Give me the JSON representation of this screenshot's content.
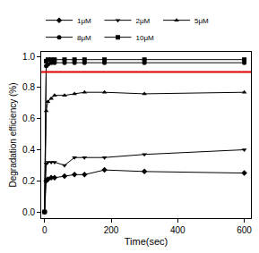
{
  "chart_data": {
    "type": "line",
    "x_label": "Time(sec)",
    "y_label": "Degradation efficiency (%)",
    "x": [
      0,
      5,
      10,
      20,
      30,
      60,
      90,
      120,
      180,
      300,
      600
    ],
    "series": [
      {
        "name": "1μM",
        "color": "#000000",
        "marker": "diamond",
        "line_style": "solid",
        "values": [
          0,
          0.2,
          0.21,
          0.22,
          0.22,
          0.23,
          0.24,
          0.24,
          0.27,
          0.26,
          0.25
        ]
      },
      {
        "name": "2μM",
        "color": "#000000",
        "marker": "triangle-down",
        "line_style": "solid",
        "values": [
          0,
          0.31,
          0.32,
          0.32,
          0.32,
          0.3,
          0.35,
          0.35,
          0.35,
          0.37,
          0.4
        ]
      },
      {
        "name": "5μM",
        "color": "#000000",
        "marker": "triangle-up",
        "line_style": "solid",
        "values": [
          0,
          0.65,
          0.71,
          0.73,
          0.75,
          0.75,
          0.76,
          0.77,
          0.77,
          0.76,
          0.77
        ]
      },
      {
        "name": "8μM",
        "color": "#000000",
        "marker": "circle",
        "line_style": "solid",
        "values": [
          0,
          0.94,
          0.95,
          0.96,
          0.96,
          0.96,
          0.96,
          0.96,
          0.96,
          0.96,
          0.96
        ]
      },
      {
        "name": "10μM",
        "color": "#000000",
        "marker": "square",
        "line_style": "solid",
        "values": [
          0,
          0.97,
          0.98,
          0.98,
          0.98,
          0.98,
          0.98,
          0.98,
          0.98,
          0.98,
          0.98
        ]
      }
    ],
    "reference_line": {
      "y": 0.9,
      "color": "#e00000"
    },
    "xlim": [
      -10,
      620
    ],
    "xticks": [
      0,
      200,
      400,
      600
    ],
    "ylim": [
      -0.04,
      1.03
    ],
    "yticks": [
      {
        "value": 0,
        "label": "0.0"
      },
      {
        "value": 0.2,
        "label": "0.2"
      },
      {
        "value": 0.4,
        "label": "0.4"
      },
      {
        "value": 0.6,
        "label": "0.6"
      },
      {
        "value": 0.8,
        "label": "0.8"
      },
      {
        "value": 1,
        "label": "1.0"
      }
    ],
    "grid": false,
    "legend": "top"
  }
}
